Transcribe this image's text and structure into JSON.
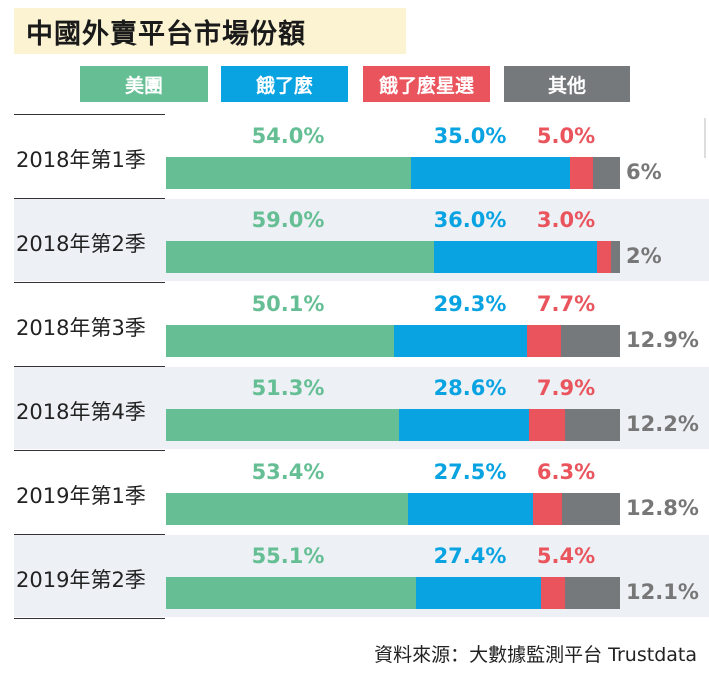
{
  "title": "中國外賣平台市場份額",
  "source": "資料來源：大數據監測平台 Trustdata",
  "colors": {
    "meituan": "#66bf94",
    "eleme": "#0aa3e2",
    "eleme_star": "#e9545d",
    "other": "#76797c",
    "row_shade": "#edf1f6"
  },
  "legend": [
    "美團",
    "餓了麼",
    "餓了麼星選",
    "其他"
  ],
  "chart_data": {
    "type": "bar",
    "orientation": "horizontal",
    "stacked": true,
    "title": "中國外賣平台市場份額",
    "categories": [
      "2018年第1季",
      "2018年第2季",
      "2018年第3季",
      "2018年第4季",
      "2019年第1季",
      "2019年第2季"
    ],
    "series": [
      {
        "name": "美團",
        "values": [
          54.0,
          59.0,
          50.1,
          51.3,
          53.4,
          55.1
        ],
        "labels": [
          "54.0%",
          "59.0%",
          "50.1%",
          "51.3%",
          "53.4%",
          "55.1%"
        ]
      },
      {
        "name": "餓了麼",
        "values": [
          35.0,
          36.0,
          29.3,
          28.6,
          27.5,
          27.4
        ],
        "labels": [
          "35.0%",
          "36.0%",
          "29.3%",
          "28.6%",
          "27.5%",
          "27.4%"
        ]
      },
      {
        "name": "餓了麼星選",
        "values": [
          5.0,
          3.0,
          7.7,
          7.9,
          6.3,
          5.4
        ],
        "labels": [
          "5.0%",
          "3.0%",
          "7.7%",
          "7.9%",
          "6.3%",
          "5.4%"
        ]
      },
      {
        "name": "其他",
        "values": [
          6,
          2,
          12.9,
          12.2,
          12.8,
          12.1
        ],
        "labels": [
          "6%",
          "2%",
          "12.9%",
          "12.2%",
          "12.8%",
          "12.1%"
        ]
      }
    ],
    "xlim": [
      0,
      100
    ],
    "grid": false,
    "legend_position": "top"
  }
}
